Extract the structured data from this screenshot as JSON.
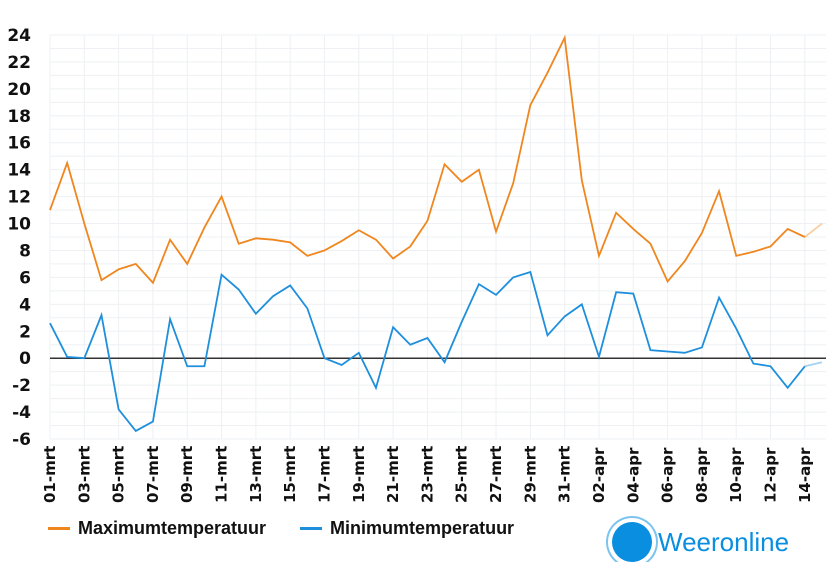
{
  "chart_data": {
    "type": "line",
    "title": "",
    "xlabel": "",
    "ylabel": "",
    "ylim": [
      -6,
      24
    ],
    "yticks": [
      24,
      22,
      20,
      18,
      16,
      14,
      12,
      10,
      8,
      6,
      4,
      2,
      0,
      -2,
      -4,
      -6
    ],
    "grid": true,
    "legend_position": "bottom-left",
    "x": [
      "01-mrt",
      "02-mrt",
      "03-mrt",
      "04-mrt",
      "05-mrt",
      "06-mrt",
      "07-mrt",
      "08-mrt",
      "09-mrt",
      "10-mrt",
      "11-mrt",
      "12-mrt",
      "13-mrt",
      "14-mrt",
      "15-mrt",
      "16-mrt",
      "17-mrt",
      "18-mrt",
      "19-mrt",
      "20-mrt",
      "21-mrt",
      "22-mrt",
      "23-mrt",
      "24-mrt",
      "25-mrt",
      "26-mrt",
      "27-mrt",
      "28-mrt",
      "29-mrt",
      "30-mrt",
      "31-mrt",
      "01-apr",
      "02-apr",
      "03-apr",
      "04-apr",
      "05-apr",
      "06-apr",
      "07-apr",
      "08-apr",
      "09-apr",
      "10-apr",
      "11-apr",
      "12-apr",
      "13-apr",
      "14-apr",
      "15-apr"
    ],
    "xtick_labels": [
      "01-mrt",
      "03-mrt",
      "05-mrt",
      "07-mrt",
      "09-mrt",
      "11-mrt",
      "13-mrt",
      "15-mrt",
      "17-mrt",
      "19-mrt",
      "21-mrt",
      "23-mrt",
      "25-mrt",
      "27-mrt",
      "29-mrt",
      "31-mrt",
      "02-apr",
      "04-apr",
      "06-apr",
      "08-apr",
      "10-apr",
      "12-apr",
      "14-apr"
    ],
    "series": [
      {
        "name": "Maximumtemperatuur",
        "color": "#f0861e",
        "values": [
          11,
          14.5,
          10,
          5.8,
          6.6,
          7,
          5.6,
          8.8,
          7,
          9.7,
          12,
          8.5,
          8.9,
          8.8,
          8.6,
          7.6,
          8,
          8.7,
          9.5,
          8.8,
          7.4,
          8.3,
          10.2,
          14.4,
          13.1,
          14,
          9.4,
          13,
          18.8,
          21.2,
          23.8,
          13.2,
          7.6,
          10.8,
          9.6,
          8.5,
          5.7,
          7.2,
          9.3,
          12.4,
          7.6,
          7.9,
          8.3,
          9.6,
          9,
          10
        ]
      },
      {
        "name": "Minimumtemperatuur",
        "color": "#1e8fdc",
        "values": [
          2.6,
          0.1,
          0,
          3.2,
          -3.8,
          -5.4,
          -4.7,
          2.9,
          -0.6,
          -0.6,
          6.2,
          5.1,
          3.3,
          4.6,
          5.4,
          3.7,
          0,
          -0.5,
          0.4,
          -2.2,
          2.3,
          1,
          1.5,
          -0.3,
          2.7,
          5.5,
          4.7,
          6,
          6.4,
          1.7,
          3.1,
          4,
          0.1,
          4.9,
          4.8,
          0.6,
          0.5,
          0.4,
          0.8,
          4.5,
          2.2,
          -0.4,
          -0.6,
          -2.2,
          -0.6,
          -0.3
        ]
      }
    ]
  },
  "logo": {
    "text": "Weeronline"
  }
}
